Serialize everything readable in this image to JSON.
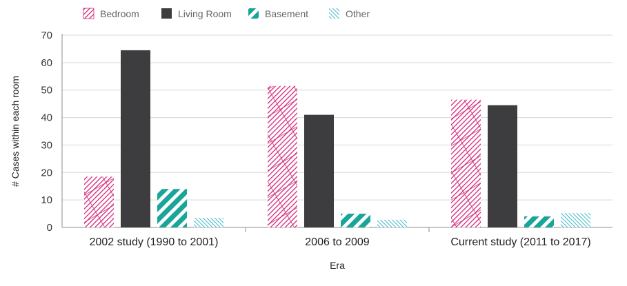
{
  "chart_data": {
    "type": "bar",
    "categories": [
      "2002 study (1990 to 2001)",
      "2006 to 2009",
      "Current study (2011 to 2017)"
    ],
    "series": [
      {
        "name": "Bedroom",
        "values": [
          18.5,
          51.5,
          46.5
        ],
        "color": "#d4267a",
        "pattern": "crosshatch"
      },
      {
        "name": "Living Room",
        "values": [
          64.5,
          41,
          44.5
        ],
        "color": "#3d3d3f",
        "pattern": "solid"
      },
      {
        "name": "Basement",
        "values": [
          14,
          5,
          4
        ],
        "color": "#1aa59a",
        "pattern": "thick-diagonal"
      },
      {
        "name": "Other",
        "values": [
          3.5,
          2.8,
          5.2
        ],
        "color": "#3ab8c6",
        "pattern": "thin-diagonal"
      }
    ],
    "xlabel": "Era",
    "ylabel": "# Cases within each room",
    "ylim": [
      0,
      70
    ],
    "yticks": [
      "0",
      "10",
      "20",
      "30",
      "40",
      "50",
      "60",
      "70"
    ],
    "grid": true,
    "legend_position": "top-left"
  }
}
